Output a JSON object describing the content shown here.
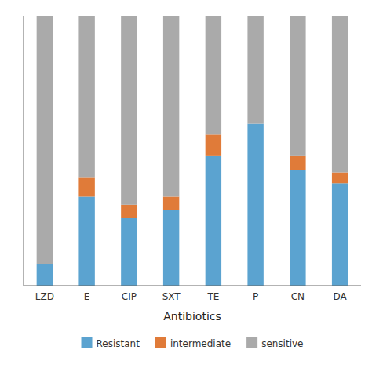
{
  "chart_data": {
    "type": "bar",
    "stacked": true,
    "categories": [
      "LZD",
      "E",
      "CIP",
      "SXT",
      "TE",
      "P",
      "CN",
      "DA"
    ],
    "series": [
      {
        "name": "Resistant",
        "color": "#5BA3D0",
        "values": [
          8,
          33,
          25,
          28,
          48,
          60,
          43,
          38
        ]
      },
      {
        "name": "intermediate",
        "color": "#E07B39",
        "values": [
          0,
          7,
          5,
          5,
          8,
          0,
          5,
          4
        ]
      },
      {
        "name": "sensitive",
        "color": "#AAAAAA",
        "values": [
          92,
          60,
          70,
          67,
          44,
          40,
          52,
          58
        ]
      }
    ],
    "xlabel": "Antibiotics",
    "ylim": [
      0,
      100
    ],
    "yticks": [],
    "grid": false,
    "tick_labels": "x",
    "legend": "bottom"
  }
}
